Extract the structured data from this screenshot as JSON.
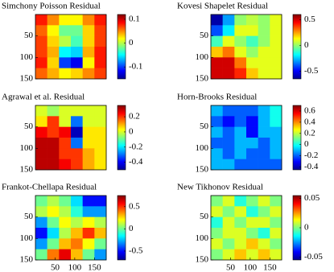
{
  "chart_data": [
    {
      "type": "heatmap",
      "title": "Simchony Poisson Residual",
      "colormap": "jet",
      "xlim": [
        0,
        180
      ],
      "ylim": [
        0,
        150
      ],
      "yticks": [
        50,
        100,
        150
      ],
      "clim": [
        -0.15,
        0.12
      ],
      "cticks": [
        0.1,
        0,
        -0.1
      ],
      "z": [
        [
          0.08,
          0.05,
          0.02,
          0.02,
          0.05,
          0.08
        ],
        [
          0.06,
          0.02,
          -0.02,
          -0.02,
          0.03,
          0.07
        ],
        [
          0.07,
          0.03,
          0.0,
          -0.03,
          0.03,
          0.07
        ],
        [
          0.07,
          0.04,
          -0.05,
          -0.06,
          0.04,
          0.08
        ],
        [
          0.08,
          0.03,
          -0.1,
          -0.12,
          0.02,
          0.08
        ],
        [
          0.06,
          0.04,
          0.02,
          0.03,
          0.05,
          0.07
        ]
      ]
    },
    {
      "type": "heatmap",
      "title": "Kovesi Shapelet Residual",
      "colormap": "jet",
      "xlim": [
        0,
        180
      ],
      "ylim": [
        0,
        150
      ],
      "yticks": [
        50,
        100,
        150
      ],
      "clim": [
        -0.65,
        0.6
      ],
      "cticks": [
        0.5,
        0,
        -0.5
      ],
      "z": [
        [
          -0.6,
          -0.3,
          0.0,
          0.05,
          0.0,
          0.1
        ],
        [
          -0.4,
          -0.2,
          0.1,
          0.1,
          0.0,
          0.1
        ],
        [
          -0.1,
          0.1,
          0.0,
          -0.1,
          0.0,
          0.1
        ],
        [
          0.2,
          0.3,
          0.1,
          0.0,
          0.1,
          0.1
        ],
        [
          0.5,
          0.5,
          0.3,
          0.1,
          0.1,
          0.1
        ],
        [
          0.5,
          0.5,
          0.4,
          0.2,
          0.1,
          0.1
        ]
      ]
    },
    {
      "type": "heatmap",
      "title": "Agrawal et al. Residual",
      "colormap": "jet",
      "xlim": [
        0,
        180
      ],
      "ylim": [
        0,
        150
      ],
      "yticks": [
        50,
        100,
        150
      ],
      "clim": [
        -0.5,
        0.35
      ],
      "cticks": [
        0.2,
        0,
        -0.2,
        -0.4
      ],
      "z": [
        [
          0.0,
          -0.05,
          0.0,
          0.0,
          0.0,
          0.0
        ],
        [
          0.05,
          0.2,
          0.0,
          -0.3,
          0.0,
          0.0
        ],
        [
          0.25,
          0.2,
          0.25,
          -0.45,
          0.05,
          0.05
        ],
        [
          0.3,
          0.3,
          0.2,
          -0.3,
          0.05,
          0.05
        ],
        [
          0.3,
          0.3,
          0.2,
          0.2,
          0.1,
          0.05
        ],
        [
          0.3,
          0.3,
          0.25,
          0.2,
          0.1,
          0.05
        ]
      ]
    },
    {
      "type": "heatmap",
      "title": "Horn-Brooks Residual",
      "colormap": "jet",
      "xlim": [
        0,
        180
      ],
      "ylim": [
        0,
        150
      ],
      "yticks": [
        50,
        100,
        150
      ],
      "clim": [
        -0.45,
        0.7
      ],
      "cticks": [
        0.6,
        0.4,
        0.2,
        0,
        -0.2,
        -0.4
      ],
      "z": [
        [
          -0.1,
          -0.2,
          -0.2,
          -0.2,
          -0.1,
          0.0
        ],
        [
          -0.2,
          -0.3,
          -0.2,
          -0.3,
          -0.1,
          0.0
        ],
        [
          -0.1,
          -0.2,
          -0.1,
          -0.3,
          -0.1,
          -0.1
        ],
        [
          -0.2,
          -0.2,
          -0.1,
          -0.1,
          -0.2,
          -0.1
        ],
        [
          -0.1,
          -0.2,
          -0.1,
          -0.2,
          -0.2,
          -0.1
        ],
        [
          -0.1,
          -0.1,
          -0.2,
          -0.2,
          -0.2,
          -0.2
        ]
      ]
    },
    {
      "type": "heatmap",
      "title": "Frankot-Chellapa Residual",
      "colormap": "jet",
      "xlim": [
        0,
        180
      ],
      "ylim": [
        0,
        150
      ],
      "xticks": [
        50,
        100,
        150
      ],
      "yticks": [
        50,
        100,
        150
      ],
      "clim": [
        -0.7,
        0.75
      ],
      "cticks": [
        0.5,
        0,
        -0.5
      ],
      "z": [
        [
          0.0,
          0.1,
          0.0,
          -0.2,
          -0.5,
          -0.5
        ],
        [
          0.1,
          0.2,
          0.1,
          -0.1,
          -0.3,
          -0.3
        ],
        [
          -0.3,
          0.0,
          0.2,
          0.1,
          0.2,
          0.1
        ],
        [
          -0.5,
          -0.2,
          0.1,
          0.3,
          0.5,
          0.3
        ],
        [
          -0.3,
          0.0,
          0.3,
          0.4,
          0.2,
          0.0
        ],
        [
          0.0,
          0.4,
          0.6,
          0.3,
          0.0,
          -0.3
        ]
      ]
    },
    {
      "type": "heatmap",
      "title": "New Tikhonov Residual",
      "colormap": "jet",
      "xlim": [
        0,
        180
      ],
      "ylim": [
        0,
        150
      ],
      "xticks": [
        50,
        100,
        150
      ],
      "yticks": [
        50,
        100,
        150
      ],
      "clim": [
        -0.055,
        0.055
      ],
      "cticks": [
        0.05,
        0,
        -0.05
      ],
      "z": [
        [
          0.0,
          0.01,
          -0.01,
          0.0,
          0.01,
          0.0
        ],
        [
          0.01,
          0.0,
          0.01,
          -0.01,
          0.0,
          0.01
        ],
        [
          -0.01,
          0.01,
          0.0,
          0.01,
          0.01,
          0.0
        ],
        [
          0.0,
          0.01,
          0.01,
          0.0,
          -0.01,
          0.01
        ],
        [
          0.01,
          0.0,
          0.01,
          0.02,
          0.01,
          0.0
        ],
        [
          0.0,
          0.01,
          0.02,
          0.01,
          0.02,
          0.01
        ]
      ]
    }
  ]
}
